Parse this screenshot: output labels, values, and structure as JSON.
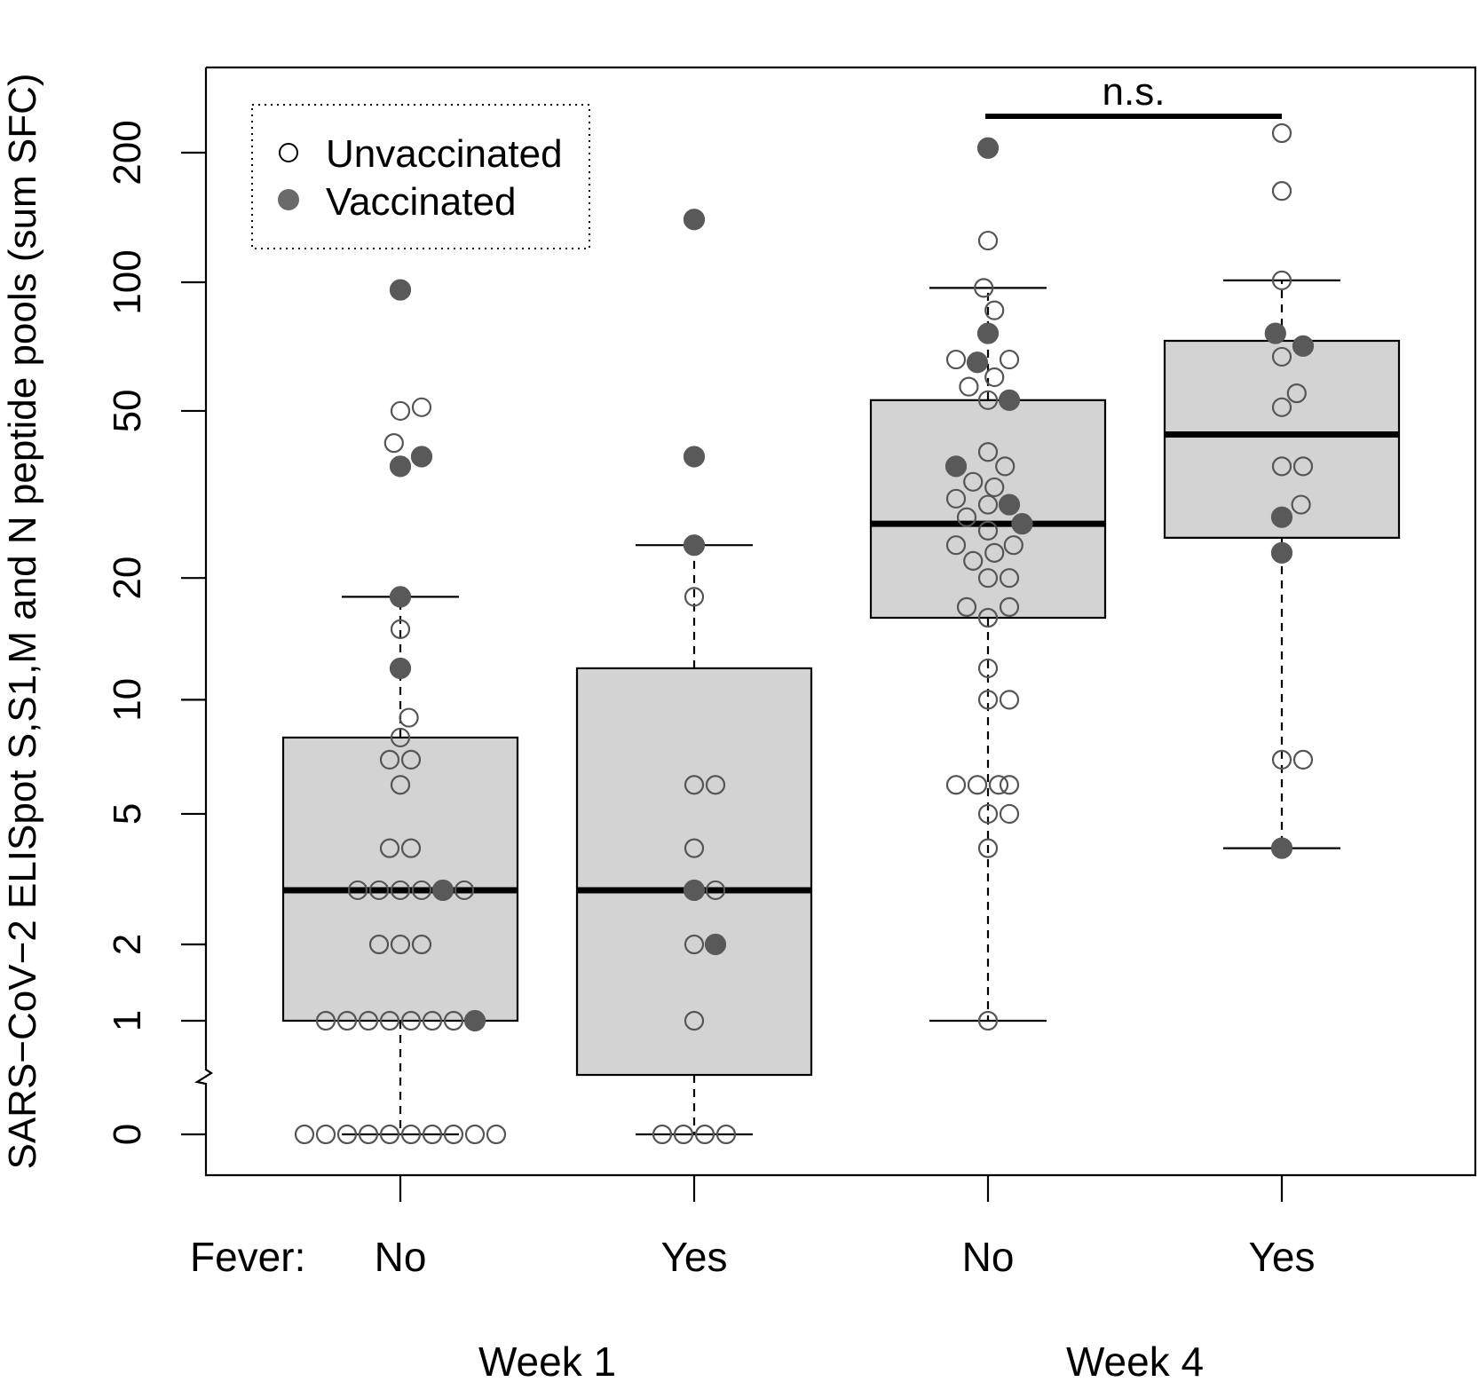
{
  "chart_data": {
    "type": "box",
    "ylabel": "SARS−CoV−2 ELISpot S,S1,M and N peptide pools (sum SFC)",
    "yscale": "log (value+1) with axis break below 1",
    "y_ticks": [
      0,
      1,
      2,
      5,
      10,
      20,
      50,
      100,
      200
    ],
    "y_tick_labels": [
      "0",
      "1",
      "2",
      "5",
      "10",
      "20",
      "50",
      "100",
      "200"
    ],
    "fever_label": "Fever:",
    "legend": {
      "placement": "top-left",
      "entries": [
        {
          "label": "Unvaccinated",
          "style": "open-circle"
        },
        {
          "label": "Vaccinated",
          "style": "filled-circle"
        }
      ]
    },
    "annotation": {
      "text": "n.s.",
      "between": [
        "Week 4 No",
        "Week 4 Yes"
      ]
    },
    "week_labels": [
      {
        "label": "Week 1",
        "groups": [
          0,
          1
        ]
      },
      {
        "label": "Week 4",
        "groups": [
          2,
          3
        ]
      }
    ],
    "groups": [
      {
        "week": "Week 1",
        "fever": "No",
        "box": {
          "whisker_low": 0,
          "q1": 1,
          "median": 3,
          "q3": 8,
          "whisker_high": 18
        },
        "points": [
          {
            "v": 0,
            "dx": -4.5,
            "vac": false
          },
          {
            "v": 0,
            "dx": -3.5,
            "vac": false
          },
          {
            "v": 0,
            "dx": -2.5,
            "vac": false
          },
          {
            "v": 0,
            "dx": -1.5,
            "vac": false
          },
          {
            "v": 0,
            "dx": -0.5,
            "vac": false
          },
          {
            "v": 0,
            "dx": 0.5,
            "vac": false
          },
          {
            "v": 0,
            "dx": 1.5,
            "vac": false
          },
          {
            "v": 0,
            "dx": 2.5,
            "vac": false
          },
          {
            "v": 0,
            "dx": 3.5,
            "vac": false
          },
          {
            "v": 0,
            "dx": 4.5,
            "vac": false
          },
          {
            "v": 1,
            "dx": -3.5,
            "vac": false
          },
          {
            "v": 1,
            "dx": -2.5,
            "vac": false
          },
          {
            "v": 1,
            "dx": -1.5,
            "vac": false
          },
          {
            "v": 1,
            "dx": -0.5,
            "vac": false
          },
          {
            "v": 1,
            "dx": 0.5,
            "vac": false
          },
          {
            "v": 1,
            "dx": 1.5,
            "vac": false
          },
          {
            "v": 1,
            "dx": 2.5,
            "vac": false
          },
          {
            "v": 1,
            "dx": 3.5,
            "vac": true
          },
          {
            "v": 2,
            "dx": -1,
            "vac": false
          },
          {
            "v": 2,
            "dx": 0,
            "vac": false
          },
          {
            "v": 2,
            "dx": 1,
            "vac": false
          },
          {
            "v": 3,
            "dx": -2,
            "vac": false
          },
          {
            "v": 3,
            "dx": -1,
            "vac": false
          },
          {
            "v": 3,
            "dx": 0,
            "vac": false
          },
          {
            "v": 3,
            "dx": 1,
            "vac": false
          },
          {
            "v": 3,
            "dx": 2,
            "vac": true
          },
          {
            "v": 3,
            "dx": 3,
            "vac": false
          },
          {
            "v": 4,
            "dx": -0.5,
            "vac": false
          },
          {
            "v": 4,
            "dx": 0.5,
            "vac": false
          },
          {
            "v": 6,
            "dx": 0,
            "vac": false
          },
          {
            "v": 7,
            "dx": -0.5,
            "vac": false
          },
          {
            "v": 7,
            "dx": 0.5,
            "vac": false
          },
          {
            "v": 8,
            "dx": 0,
            "vac": false
          },
          {
            "v": 9,
            "dx": 0.4,
            "vac": false
          },
          {
            "v": 12,
            "dx": 0,
            "vac": true
          },
          {
            "v": 15,
            "dx": 0,
            "vac": false
          },
          {
            "v": 18,
            "dx": 0,
            "vac": true
          },
          {
            "v": 37,
            "dx": 0,
            "vac": true
          },
          {
            "v": 39,
            "dx": 1,
            "vac": true
          },
          {
            "v": 42,
            "dx": -0.3,
            "vac": false
          },
          {
            "v": 50,
            "dx": 0,
            "vac": false
          },
          {
            "v": 51,
            "dx": 1,
            "vac": false
          },
          {
            "v": 96,
            "dx": 0,
            "vac": true
          }
        ]
      },
      {
        "week": "Week 1",
        "fever": "Yes",
        "box": {
          "whisker_low": 0,
          "q1": 0.5,
          "median": 3,
          "q3": 12,
          "whisker_high": 24
        },
        "points": [
          {
            "v": 0,
            "dx": -1.5,
            "vac": false
          },
          {
            "v": 0,
            "dx": -0.5,
            "vac": false
          },
          {
            "v": 0,
            "dx": 0.5,
            "vac": false
          },
          {
            "v": 0,
            "dx": 1.5,
            "vac": false
          },
          {
            "v": 1,
            "dx": 0,
            "vac": false
          },
          {
            "v": 2,
            "dx": 0,
            "vac": false
          },
          {
            "v": 2,
            "dx": 1,
            "vac": true
          },
          {
            "v": 3,
            "dx": 0,
            "vac": true
          },
          {
            "v": 3,
            "dx": 1,
            "vac": false
          },
          {
            "v": 4,
            "dx": 0,
            "vac": false
          },
          {
            "v": 6,
            "dx": 0,
            "vac": false
          },
          {
            "v": 6,
            "dx": 1,
            "vac": false
          },
          {
            "v": 18,
            "dx": 0,
            "vac": false
          },
          {
            "v": 24,
            "dx": 0,
            "vac": true
          },
          {
            "v": 39,
            "dx": 0,
            "vac": true
          },
          {
            "v": 140,
            "dx": 0,
            "vac": true
          }
        ]
      },
      {
        "week": "Week 4",
        "fever": "No",
        "box": {
          "whisker_low": 1,
          "q1": 16,
          "median": 27,
          "q3": 53,
          "whisker_high": 97
        },
        "points": [
          {
            "v": 1,
            "dx": 0,
            "vac": false
          },
          {
            "v": 4,
            "dx": 0,
            "vac": false
          },
          {
            "v": 5,
            "dx": 0,
            "vac": false
          },
          {
            "v": 5,
            "dx": 1,
            "vac": false
          },
          {
            "v": 6,
            "dx": -1.5,
            "vac": false
          },
          {
            "v": 6,
            "dx": -0.5,
            "vac": false
          },
          {
            "v": 6,
            "dx": 0.5,
            "vac": false
          },
          {
            "v": 6,
            "dx": 1,
            "vac": false
          },
          {
            "v": 10,
            "dx": 0,
            "vac": false
          },
          {
            "v": 10,
            "dx": 1,
            "vac": false
          },
          {
            "v": 12,
            "dx": 0,
            "vac": false
          },
          {
            "v": 16,
            "dx": 0,
            "vac": false
          },
          {
            "v": 17,
            "dx": -1,
            "vac": false
          },
          {
            "v": 17,
            "dx": 1,
            "vac": false
          },
          {
            "v": 20,
            "dx": 0,
            "vac": false
          },
          {
            "v": 20,
            "dx": 1,
            "vac": false
          },
          {
            "v": 22,
            "dx": -0.7,
            "vac": false
          },
          {
            "v": 23,
            "dx": 0.3,
            "vac": false
          },
          {
            "v": 24,
            "dx": -1.5,
            "vac": false
          },
          {
            "v": 24,
            "dx": 1.2,
            "vac": false
          },
          {
            "v": 26,
            "dx": 0,
            "vac": false
          },
          {
            "v": 27,
            "dx": 1.6,
            "vac": true
          },
          {
            "v": 28,
            "dx": -1,
            "vac": false
          },
          {
            "v": 30,
            "dx": 0,
            "vac": false
          },
          {
            "v": 30,
            "dx": 1,
            "vac": true
          },
          {
            "v": 31,
            "dx": -1.5,
            "vac": false
          },
          {
            "v": 33,
            "dx": 0.3,
            "vac": false
          },
          {
            "v": 34,
            "dx": -0.7,
            "vac": false
          },
          {
            "v": 37,
            "dx": -1.5,
            "vac": true
          },
          {
            "v": 37,
            "dx": 0.8,
            "vac": false
          },
          {
            "v": 40,
            "dx": 0,
            "vac": false
          },
          {
            "v": 53,
            "dx": 0,
            "vac": false
          },
          {
            "v": 53,
            "dx": 1,
            "vac": true
          },
          {
            "v": 57,
            "dx": -0.9,
            "vac": false
          },
          {
            "v": 60,
            "dx": 0.3,
            "vac": false
          },
          {
            "v": 65,
            "dx": -0.5,
            "vac": true
          },
          {
            "v": 66,
            "dx": -1.5,
            "vac": false
          },
          {
            "v": 66,
            "dx": 1,
            "vac": false
          },
          {
            "v": 76,
            "dx": 0,
            "vac": true
          },
          {
            "v": 86,
            "dx": 0.3,
            "vac": false
          },
          {
            "v": 97,
            "dx": -0.2,
            "vac": false
          },
          {
            "v": 125,
            "dx": 0,
            "vac": false
          },
          {
            "v": 205,
            "dx": 0,
            "vac": true
          }
        ]
      },
      {
        "week": "Week 4",
        "fever": "Yes",
        "box": {
          "whisker_low": 4,
          "q1": 25,
          "median": 44,
          "q3": 73,
          "whisker_high": 101
        },
        "points": [
          {
            "v": 4,
            "dx": 0,
            "vac": true
          },
          {
            "v": 7,
            "dx": 0,
            "vac": false
          },
          {
            "v": 7,
            "dx": 1,
            "vac": false
          },
          {
            "v": 23,
            "dx": 0,
            "vac": true
          },
          {
            "v": 28,
            "dx": 0,
            "vac": true
          },
          {
            "v": 30,
            "dx": 0.9,
            "vac": false
          },
          {
            "v": 37,
            "dx": 0,
            "vac": false
          },
          {
            "v": 37,
            "dx": 1,
            "vac": false
          },
          {
            "v": 51,
            "dx": 0,
            "vac": false
          },
          {
            "v": 55,
            "dx": 0.7,
            "vac": false
          },
          {
            "v": 67,
            "dx": 0,
            "vac": false
          },
          {
            "v": 71,
            "dx": 1,
            "vac": true
          },
          {
            "v": 76,
            "dx": -0.3,
            "vac": true
          },
          {
            "v": 101,
            "dx": 0,
            "vac": false
          },
          {
            "v": 163,
            "dx": 0,
            "vac": false
          },
          {
            "v": 222,
            "dx": 0,
            "vac": false
          }
        ]
      }
    ]
  }
}
